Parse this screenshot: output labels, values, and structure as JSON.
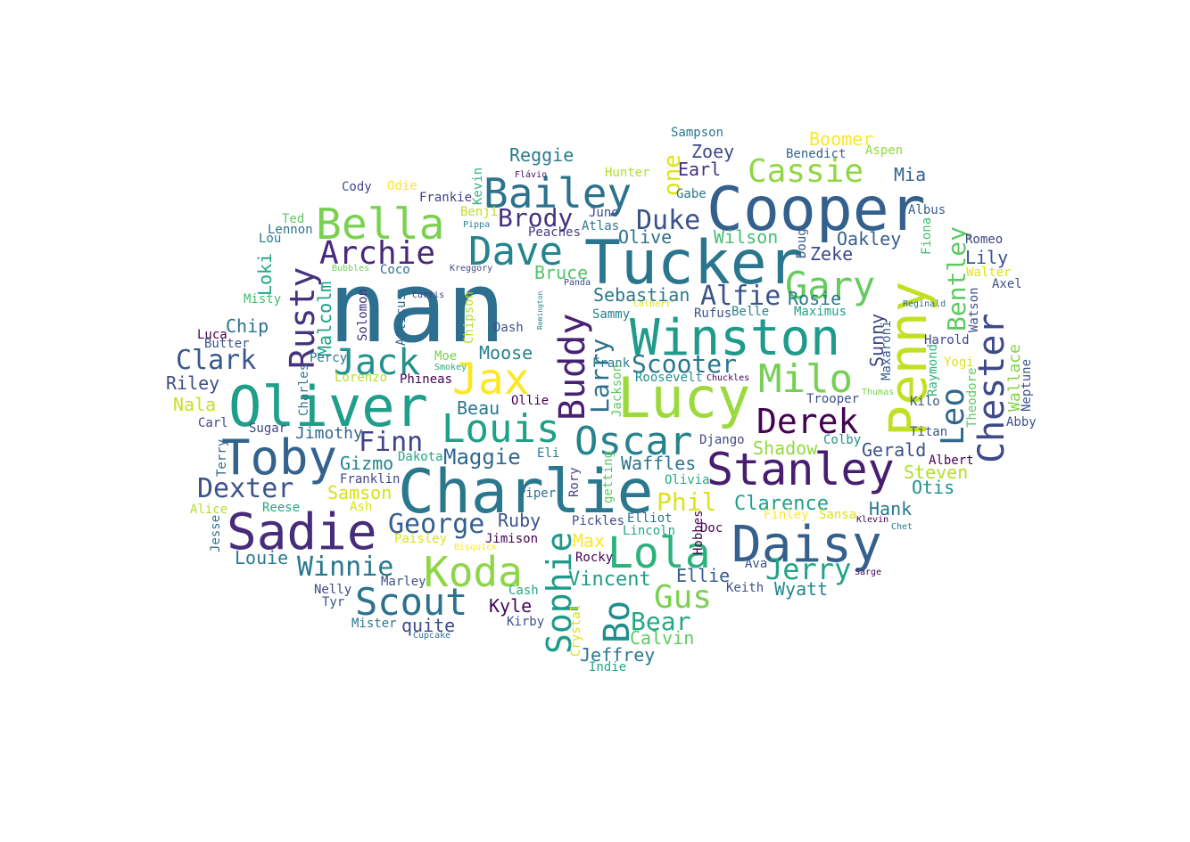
{
  "wordcloud": {
    "words": [
      {
        "text": "nan",
        "color": "#2c6f8e"
      },
      {
        "text": "Tucker",
        "color": "#2a768e"
      },
      {
        "text": "Cooper",
        "color": "#34608d"
      },
      {
        "text": "Charlie",
        "color": "#2a788e"
      },
      {
        "text": "Lucy",
        "color": "#9bd93c"
      },
      {
        "text": "Winston",
        "color": "#1e9b8a"
      },
      {
        "text": "Oliver",
        "color": "#1f9e89"
      },
      {
        "text": "Penny",
        "color": "#c2df23"
      },
      {
        "text": "Daisy",
        "color": "#355f8d"
      },
      {
        "text": "Stanley",
        "color": "#481d6f"
      },
      {
        "text": "Toby",
        "color": "#33638d"
      },
      {
        "text": "Sadie",
        "color": "#472c7a"
      },
      {
        "text": "Lola",
        "color": "#2db27d"
      },
      {
        "text": "Bailey",
        "color": "#2c728e"
      },
      {
        "text": "Bella",
        "color": "#7ad151"
      },
      {
        "text": "Milo",
        "color": "#75d054"
      },
      {
        "text": "Koda",
        "color": "#8ed645"
      },
      {
        "text": "Louis",
        "color": "#1fa187"
      },
      {
        "text": "Oscar",
        "color": "#26828e"
      },
      {
        "text": "Derek",
        "color": "#440154"
      },
      {
        "text": "Chester",
        "color": "#3e4a89"
      },
      {
        "text": "Jax",
        "color": "#fde725"
      },
      {
        "text": "Dave",
        "color": "#25848e"
      },
      {
        "text": "Scout",
        "color": "#2c728e"
      },
      {
        "text": "Rusty",
        "color": "#46327e"
      },
      {
        "text": "Jack",
        "color": "#21918c"
      },
      {
        "text": "Buddy",
        "color": "#482173"
      },
      {
        "text": "Gary",
        "color": "#65cb5e"
      },
      {
        "text": "Cassie",
        "color": "#90d743"
      },
      {
        "text": "Archie",
        "color": "#482878"
      },
      {
        "text": "Sophie",
        "color": "#1f9a8a"
      },
      {
        "text": "Bo",
        "color": "#228d8d"
      },
      {
        "text": "Leo",
        "color": "#31688e"
      },
      {
        "text": "Gus",
        "color": "#7ad151"
      },
      {
        "text": "Jerry",
        "color": "#20a386"
      },
      {
        "text": "Winnie",
        "color": "#2a788e"
      },
      {
        "text": "George",
        "color": "#355e8d"
      },
      {
        "text": "Bentley",
        "color": "#5ec962"
      },
      {
        "text": "Scooter",
        "color": "#2a768e"
      },
      {
        "text": "Alfie",
        "color": "#3b528b"
      },
      {
        "text": "Finn",
        "color": "#414487"
      },
      {
        "text": "Duke",
        "color": "#3b528b"
      },
      {
        "text": "Brody",
        "color": "#46337e"
      },
      {
        "text": "Phil",
        "color": "#dde318"
      },
      {
        "text": "Clark",
        "color": "#38588c"
      },
      {
        "text": "Dexter",
        "color": "#3b528b"
      },
      {
        "text": "Bear",
        "color": "#22a884"
      },
      {
        "text": "Larry",
        "color": "#2d708e"
      },
      {
        "text": "Maggie",
        "color": "#30698e"
      },
      {
        "text": "Vincent",
        "color": "#1f9e89"
      },
      {
        "text": "Clarence",
        "color": "#1fa088"
      },
      {
        "text": "Boomer",
        "color": "#fde725"
      },
      {
        "text": "Reggie",
        "color": "#287c8e"
      },
      {
        "text": "Zoey",
        "color": "#3e4989"
      },
      {
        "text": "Earl",
        "color": "#46327e"
      },
      {
        "text": "one",
        "color": "#dde318"
      },
      {
        "text": "Mia",
        "color": "#33638d"
      },
      {
        "text": "Oakley",
        "color": "#355f8d"
      },
      {
        "text": "Wilson",
        "color": "#44bf70"
      },
      {
        "text": "Zeke",
        "color": "#3e4a89"
      },
      {
        "text": "Lily",
        "color": "#3a548c"
      },
      {
        "text": "Olive",
        "color": "#2c718e"
      },
      {
        "text": "Bruce",
        "color": "#54c568"
      },
      {
        "text": "Sebastian",
        "color": "#2a778e"
      },
      {
        "text": "Rosie",
        "color": "#297a8e"
      },
      {
        "text": "Chip",
        "color": "#2d718e"
      },
      {
        "text": "Moose",
        "color": "#26828e"
      },
      {
        "text": "Beau",
        "color": "#2a788e"
      },
      {
        "text": "Malcolm",
        "color": "#1fa188"
      },
      {
        "text": "Loki",
        "color": "#22a785"
      },
      {
        "text": "Riley",
        "color": "#3d4e8a"
      },
      {
        "text": "Nala",
        "color": "#c8e020"
      },
      {
        "text": "Gizmo",
        "color": "#25838e"
      },
      {
        "text": "Samson",
        "color": "#d8e219"
      },
      {
        "text": "Jimothy",
        "color": "#31688e"
      },
      {
        "text": "Ruby",
        "color": "#3b528b"
      },
      {
        "text": "Max",
        "color": "#fde725"
      },
      {
        "text": "Louie",
        "color": "#287d8e"
      },
      {
        "text": "Kyle",
        "color": "#450559"
      },
      {
        "text": "quite",
        "color": "#3e4989"
      },
      {
        "text": "Calvin",
        "color": "#5ec962"
      },
      {
        "text": "Jeffrey",
        "color": "#2a788e"
      },
      {
        "text": "Hank",
        "color": "#2a778e"
      },
      {
        "text": "Otis",
        "color": "#21918c"
      },
      {
        "text": "Steven",
        "color": "#b5de2b"
      },
      {
        "text": "Gerald",
        "color": "#3b528b"
      },
      {
        "text": "Shadow",
        "color": "#95d840"
      },
      {
        "text": "Waffles",
        "color": "#2c718e"
      },
      {
        "text": "Ellie",
        "color": "#375b8d"
      },
      {
        "text": "Wyatt",
        "color": "#25858e"
      },
      {
        "text": "Sunny",
        "color": "#414487"
      },
      {
        "text": "Wallace",
        "color": "#84d44b"
      },
      {
        "text": "Sampson",
        "color": "#2a788e"
      },
      {
        "text": "Benedict",
        "color": "#33638d"
      },
      {
        "text": "Aspen",
        "color": "#95d840"
      },
      {
        "text": "Hunter",
        "color": "#b5de2b"
      },
      {
        "text": "Gabe",
        "color": "#2a788e"
      },
      {
        "text": "Flávio",
        "color": "#471063"
      },
      {
        "text": "Cody",
        "color": "#3e4989"
      },
      {
        "text": "Odie",
        "color": "#fde725"
      },
      {
        "text": "Frankie",
        "color": "#423f85"
      },
      {
        "text": "Kevin",
        "color": "#2fb47c"
      },
      {
        "text": "Benji",
        "color": "#bddf26"
      },
      {
        "text": "Juno",
        "color": "#3e4989"
      },
      {
        "text": "Pippa",
        "color": "#26828e"
      },
      {
        "text": "Atlas",
        "color": "#2a788e"
      },
      {
        "text": "Peaches",
        "color": "#433e85"
      },
      {
        "text": "Ted",
        "color": "#5ec962"
      },
      {
        "text": "Lennon",
        "color": "#2c728e"
      },
      {
        "text": "Lou",
        "color": "#2a788e"
      },
      {
        "text": "Albus",
        "color": "#355f8d"
      },
      {
        "text": "Fiona",
        "color": "#44bf70"
      },
      {
        "text": "Doug",
        "color": "#38598c"
      },
      {
        "text": "Romeo",
        "color": "#414487"
      },
      {
        "text": "Walter",
        "color": "#dde318"
      },
      {
        "text": "Axel",
        "color": "#3b528b"
      },
      {
        "text": "Bubbles",
        "color": "#6ccd5a"
      },
      {
        "text": "Coco",
        "color": "#2c728e"
      },
      {
        "text": "Kreggory",
        "color": "#3d4e8a"
      },
      {
        "text": "Misty",
        "color": "#44bf70"
      },
      {
        "text": "Curtis",
        "color": "#414487"
      },
      {
        "text": "Remington",
        "color": "#26828e"
      },
      {
        "text": "Panda",
        "color": "#3e4a89"
      },
      {
        "text": "Calbert",
        "color": "#dde318"
      },
      {
        "text": "Reginald",
        "color": "#2c728e"
      },
      {
        "text": "Watson",
        "color": "#3b528b"
      },
      {
        "text": "Belle",
        "color": "#25848e"
      },
      {
        "text": "Maximus",
        "color": "#20a486"
      },
      {
        "text": "Rufus",
        "color": "#3b528b"
      },
      {
        "text": "Sammy",
        "color": "#287d8e"
      },
      {
        "text": "Harold",
        "color": "#404688"
      },
      {
        "text": "Raymond",
        "color": "#2fb47c"
      },
      {
        "text": "Yogi",
        "color": "#dde318"
      },
      {
        "text": "Theodore",
        "color": "#5ec962"
      },
      {
        "text": "Neptune",
        "color": "#3b528b"
      },
      {
        "text": "Solomon",
        "color": "#46327e"
      },
      {
        "text": "Atticus",
        "color": "#31688e"
      },
      {
        "text": "Chipson",
        "color": "#b5de2b"
      },
      {
        "text": "Dash",
        "color": "#3b528b"
      },
      {
        "text": "Luca",
        "color": "#440154"
      },
      {
        "text": "Butter",
        "color": "#3b528b"
      },
      {
        "text": "Percy",
        "color": "#2c728e"
      },
      {
        "text": "Moe",
        "color": "#7ad151"
      },
      {
        "text": "Smokey",
        "color": "#22a884"
      },
      {
        "text": "Frank",
        "color": "#2a788e"
      },
      {
        "text": "Jackson",
        "color": "#5ec962"
      },
      {
        "text": "Roosevelt",
        "color": "#21918c"
      },
      {
        "text": "Chuckles",
        "color": "#440154"
      },
      {
        "text": "Maxaroni",
        "color": "#355f8d"
      },
      {
        "text": "Thumas",
        "color": "#7ad151"
      },
      {
        "text": "Trooper",
        "color": "#3b528b"
      },
      {
        "text": "Kilo",
        "color": "#3b528b"
      },
      {
        "text": "Abby",
        "color": "#3b528b"
      },
      {
        "text": "Lorenzo",
        "color": "#b5de2b"
      },
      {
        "text": "Phineas",
        "color": "#440154"
      },
      {
        "text": "Charles",
        "color": "#2a788e"
      },
      {
        "text": "Ollie",
        "color": "#440154"
      },
      {
        "text": "Carl",
        "color": "#414487"
      },
      {
        "text": "Sugar",
        "color": "#3e4989"
      },
      {
        "text": "Terry",
        "color": "#31688e"
      },
      {
        "text": "Dakota",
        "color": "#22a884"
      },
      {
        "text": "Eli",
        "color": "#2a788e"
      },
      {
        "text": "getting",
        "color": "#5ec962"
      },
      {
        "text": "Django",
        "color": "#404688"
      },
      {
        "text": "Olivia",
        "color": "#22a884"
      },
      {
        "text": "Colby",
        "color": "#21918c"
      },
      {
        "text": "Titan",
        "color": "#3b528b"
      },
      {
        "text": "Albert",
        "color": "#440154"
      },
      {
        "text": "Franklin",
        "color": "#404688"
      },
      {
        "text": "Alice",
        "color": "#b5de2b"
      },
      {
        "text": "Reese",
        "color": "#22a884"
      },
      {
        "text": "Ash",
        "color": "#dde318"
      },
      {
        "text": "Piper",
        "color": "#2c728e"
      },
      {
        "text": "Rory",
        "color": "#414487"
      },
      {
        "text": "Jesse",
        "color": "#2c728e"
      },
      {
        "text": "Paisley",
        "color": "#dde318"
      },
      {
        "text": "Jimison",
        "color": "#440154"
      },
      {
        "text": "Bisquick",
        "color": "#fde725"
      },
      {
        "text": "Pickles",
        "color": "#3e4989"
      },
      {
        "text": "Elliot",
        "color": "#2c728e"
      },
      {
        "text": "Lincoln",
        "color": "#22a884"
      },
      {
        "text": "Hobbes",
        "color": "#440154"
      },
      {
        "text": "Doc",
        "color": "#440154"
      },
      {
        "text": "Finley",
        "color": "#fde725"
      },
      {
        "text": "Sansa",
        "color": "#dde318"
      },
      {
        "text": "Klevin",
        "color": "#440154"
      },
      {
        "text": "Chet",
        "color": "#2a788e"
      },
      {
        "text": "Rocky",
        "color": "#440154"
      },
      {
        "text": "Ava",
        "color": "#3b528b"
      },
      {
        "text": "Sarge",
        "color": "#440154"
      },
      {
        "text": "Keith",
        "color": "#3b528b"
      },
      {
        "text": "Nelly",
        "color": "#3e4989"
      },
      {
        "text": "Marley",
        "color": "#3b528b"
      },
      {
        "text": "Tyr",
        "color": "#3b528b"
      },
      {
        "text": "Cash",
        "color": "#22a884"
      },
      {
        "text": "Crystal",
        "color": "#dde318"
      },
      {
        "text": "Mister",
        "color": "#2a788e"
      },
      {
        "text": "Kirby",
        "color": "#3b528b"
      },
      {
        "text": "Cupcake",
        "color": "#2c728e"
      },
      {
        "text": "Indie",
        "color": "#22a884"
      }
    ]
  }
}
